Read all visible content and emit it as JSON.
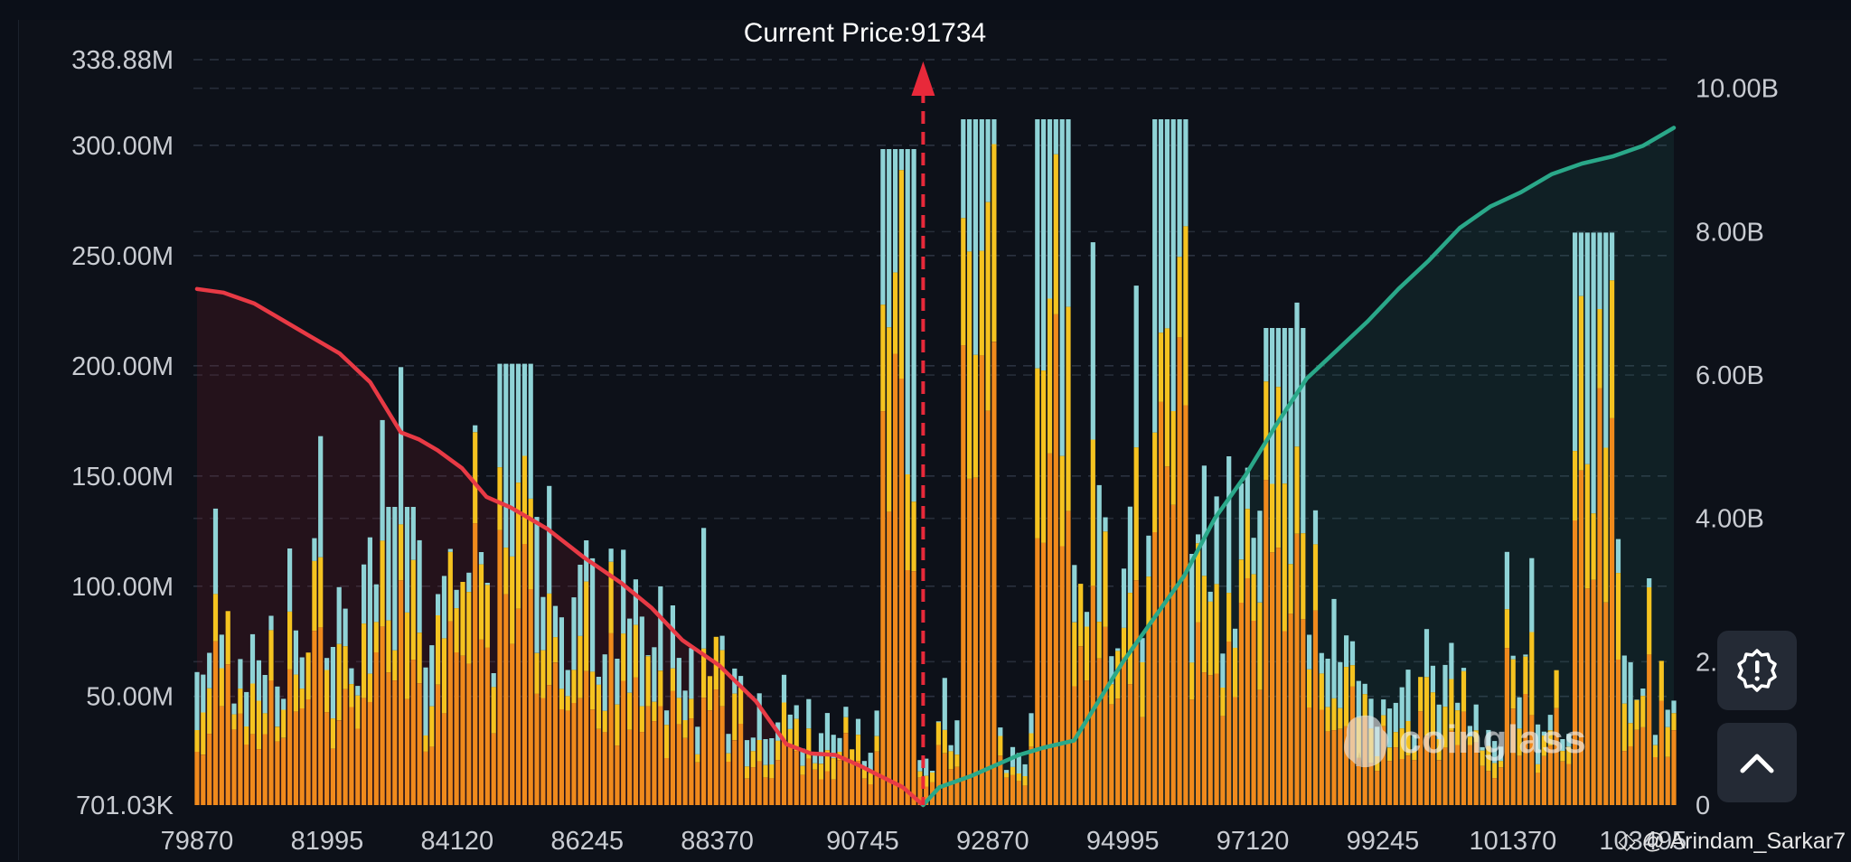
{
  "chart_data": {
    "type": "bar",
    "title": "Current Price:91734",
    "current_price": 91734,
    "x_ticks": [
      "79870",
      "81995",
      "84120",
      "86245",
      "88370",
      "90745",
      "92870",
      "94995",
      "97120",
      "99245",
      "101370",
      "103495"
    ],
    "x_range": [
      79870,
      104000
    ],
    "y_left_ticks": [
      "338.88M",
      "300.00M",
      "250.00M",
      "200.00M",
      "150.00M",
      "100.00M",
      "50.00M",
      "701.03K"
    ],
    "y_left_range": [
      701030,
      338880000
    ],
    "y_right_ticks": [
      "10.00B",
      "8.00B",
      "6.00B",
      "4.00B",
      "2.00B",
      "0"
    ],
    "y_right_range": [
      0,
      10400000000
    ],
    "grid": true,
    "legend": "none",
    "colors": {
      "bar_orange": "#f08a1c",
      "bar_yellow": "#f5c320",
      "bar_cyan": "#8fd3d6",
      "long_line": "#e83a45",
      "short_line": "#2aa889",
      "current_price_arrow": "#e8293a"
    },
    "series": [
      {
        "name": "",
        "type": "area-line",
        "color": "#e83a45",
        "x": [
          79870,
          80300,
          80800,
          81300,
          81700,
          82200,
          82700,
          83200,
          83500,
          83800,
          84200,
          84600,
          85000,
          85600,
          86200,
          86800,
          87300,
          87800,
          88400,
          89000,
          89500,
          89900,
          90300,
          90700,
          91000,
          91400,
          91734
        ],
        "y": [
          7200000000.0,
          7150000000.0,
          7000000000.0,
          6750000000.0,
          6550000000.0,
          6300000000.0,
          5900000000.0,
          5200000000.0,
          5100000000.0,
          4950000000.0,
          4700000000.0,
          4300000000.0,
          4150000000.0,
          3850000000.0,
          3450000000.0,
          3100000000.0,
          2750000000.0,
          2300000000.0,
          1950000000.0,
          1450000000.0,
          850000000.0,
          720000000.0,
          700000000.0,
          550000000.0,
          420000000.0,
          250000000.0,
          0
        ]
      },
      {
        "name": "",
        "type": "area-line",
        "color": "#2aa889",
        "x": [
          91734,
          92000,
          92500,
          92900,
          93300,
          93700,
          94200,
          94600,
          95000,
          95500,
          96000,
          96500,
          97000,
          97500,
          98000,
          98500,
          99000,
          99500,
          100000,
          100500,
          101000,
          101500,
          102000,
          102500,
          103000,
          103500,
          104000
        ],
        "y": [
          0,
          250000000.0,
          400000000.0,
          550000000.0,
          700000000.0,
          800000000.0,
          900000000.0,
          1450000000.0,
          2000000000.0,
          2600000000.0,
          3200000000.0,
          4000000000.0,
          4600000000.0,
          5300000000.0,
          5950000000.0,
          6350000000.0,
          6750000000.0,
          7200000000.0,
          7600000000.0,
          8050000000.0,
          8350000000.0,
          8550000000.0,
          8800000000.0,
          8950000000.0,
          9050000000.0,
          9200000000.0,
          9450000000.0
        ]
      }
    ]
  },
  "watermark": "coinglass",
  "credit": "@ Arindam_Sarkar7",
  "buttons": {
    "settings": "gear-alert-icon",
    "scroll_top": "chevron-up-icon"
  }
}
